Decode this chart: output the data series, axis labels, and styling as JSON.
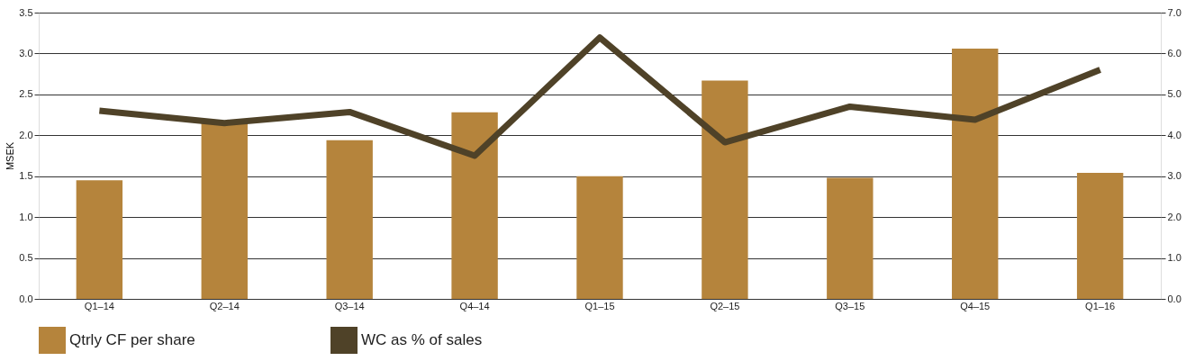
{
  "chart_data": {
    "type": "bar",
    "categories": [
      "Q1–14",
      "Q2–14",
      "Q3–14",
      "Q4–14",
      "Q1–15",
      "Q2–15",
      "Q3–15",
      "Q4–15",
      "Q1–16"
    ],
    "ylabel": "MSEK",
    "series": [
      {
        "name": "Qtrly CF per share",
        "color": "#b5843c",
        "values": [
          1.45,
          2.15,
          1.94,
          2.28,
          1.5,
          2.67,
          1.48,
          3.06,
          1.54
        ]
      },
      {
        "name": "WC as % of sales",
        "type": "line",
        "axis": "y2",
        "color": "#4f4228",
        "line_style": "solid",
        "values": [
          4.6,
          4.3,
          4.57,
          3.5,
          6.39,
          3.83,
          4.7,
          4.38,
          5.6
        ]
      }
    ],
    "ylim": [
      0,
      3.5
    ],
    "yticks": [
      {
        "value": 0,
        "label": "0.0"
      },
      {
        "value": 0.5,
        "label": "0.5"
      },
      {
        "value": 1,
        "label": "1.0"
      },
      {
        "value": 1.5,
        "label": "1.5"
      },
      {
        "value": 2,
        "label": "2.0"
      },
      {
        "value": 2.5,
        "label": "2.5"
      },
      {
        "value": 3,
        "label": "3.0"
      },
      {
        "value": 3.5,
        "label": "3.5"
      }
    ],
    "y2lim": [
      0,
      7
    ],
    "y2ticks": [
      {
        "value": 0,
        "label": "0.0"
      },
      {
        "value": 1,
        "label": "1.0"
      },
      {
        "value": 2,
        "label": "2.0"
      },
      {
        "value": 3,
        "label": "3.0"
      },
      {
        "value": 4,
        "label": "4.0"
      },
      {
        "value": 5,
        "label": "5.0"
      },
      {
        "value": 6,
        "label": "6.0"
      },
      {
        "value": 7,
        "label": "7.0"
      }
    ],
    "grid": "y",
    "legend": "bottom left"
  }
}
